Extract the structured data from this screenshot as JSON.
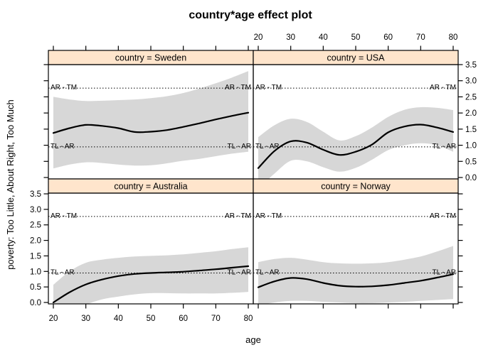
{
  "title": "country*age effect plot",
  "x_axis_label": "age",
  "y_axis_label": "poverty: Too Little, About Right, Too Much",
  "colors": {
    "strip_bg": "#ffe5cc",
    "band": "#d7d7d7",
    "line": "#000000",
    "border": "#000000"
  },
  "axis_ticks": {
    "x_labels": [
      "20",
      "30",
      "40",
      "50",
      "60",
      "70",
      "80"
    ],
    "x_values": [
      20,
      30,
      40,
      50,
      60,
      70,
      80
    ],
    "y_labels": [
      "0.0",
      "0.5",
      "1.0",
      "1.5",
      "2.0",
      "2.5",
      "3.0",
      "3.5"
    ],
    "y_values": [
      0,
      0.5,
      1,
      1.5,
      2,
      2.5,
      3,
      3.5
    ]
  },
  "chart_data": {
    "type": "line",
    "title": "country*age effect plot",
    "xlabel": "age",
    "ylabel": "poverty: Too Little, About Right, Too Much",
    "x_range": [
      18.5,
      81.5
    ],
    "y_range": [
      -0.05,
      3.52
    ],
    "grid": false,
    "legend": "none",
    "layout": "2x2 lattice, panels: top-left Sweden, top-right USA, bottom-left Australia, bottom-right Norway",
    "ages": [
      20,
      25,
      30,
      35,
      40,
      45,
      50,
      55,
      60,
      65,
      70,
      75,
      80
    ],
    "threshold_lines": [
      {
        "label": "AR - TM",
        "value": 2.77
      },
      {
        "label": "TL - AR",
        "value": 0.95
      }
    ],
    "panels": [
      {
        "id": "sweden",
        "strip_label": "country = Sweden",
        "fit": [
          1.38,
          1.53,
          1.63,
          1.6,
          1.53,
          1.41,
          1.42,
          1.47,
          1.57,
          1.68,
          1.8,
          1.91,
          2.01
        ],
        "lower": [
          0.28,
          0.4,
          0.47,
          0.45,
          0.4,
          0.37,
          0.38,
          0.44,
          0.52,
          0.58,
          0.66,
          0.74,
          0.8
        ],
        "upper": [
          2.5,
          2.42,
          2.37,
          2.38,
          2.4,
          2.42,
          2.46,
          2.52,
          2.62,
          2.76,
          2.92,
          3.1,
          3.3
        ]
      },
      {
        "id": "usa",
        "strip_label": "country = USA",
        "fit": [
          0.29,
          0.82,
          1.12,
          1.08,
          0.86,
          0.7,
          0.8,
          1.02,
          1.4,
          1.58,
          1.64,
          1.55,
          1.41
        ],
        "lower": [
          -0.35,
          0.12,
          0.52,
          0.5,
          0.32,
          0.18,
          0.3,
          0.55,
          0.85,
          1.0,
          1.06,
          1.0,
          0.8
        ],
        "upper": [
          1.25,
          1.62,
          1.82,
          1.72,
          1.42,
          1.15,
          1.28,
          1.55,
          1.88,
          2.1,
          2.18,
          2.16,
          2.09
        ]
      },
      {
        "id": "australia",
        "strip_label": "country = Australia",
        "fit": [
          0.0,
          0.33,
          0.58,
          0.74,
          0.85,
          0.92,
          0.95,
          0.97,
          0.99,
          1.03,
          1.07,
          1.12,
          1.17
        ],
        "lower": [
          -0.57,
          -0.3,
          -0.07,
          0.1,
          0.19,
          0.26,
          0.3,
          0.3,
          0.29,
          0.29,
          0.29,
          0.31,
          0.34
        ],
        "upper": [
          0.57,
          1.0,
          1.28,
          1.38,
          1.44,
          1.48,
          1.5,
          1.52,
          1.55,
          1.6,
          1.65,
          1.72,
          1.78
        ]
      },
      {
        "id": "norway",
        "strip_label": "country = Norway",
        "fit": [
          0.49,
          0.68,
          0.79,
          0.75,
          0.63,
          0.54,
          0.51,
          0.52,
          0.56,
          0.63,
          0.7,
          0.8,
          0.91
        ],
        "lower": [
          -0.1,
          0.0,
          0.05,
          0.05,
          0.02,
          0.0,
          -0.02,
          -0.02,
          0.0,
          0.02,
          0.05,
          0.08,
          0.11
        ],
        "upper": [
          1.3,
          1.4,
          1.44,
          1.38,
          1.3,
          1.26,
          1.25,
          1.26,
          1.3,
          1.38,
          1.48,
          1.64,
          1.82
        ]
      }
    ]
  }
}
